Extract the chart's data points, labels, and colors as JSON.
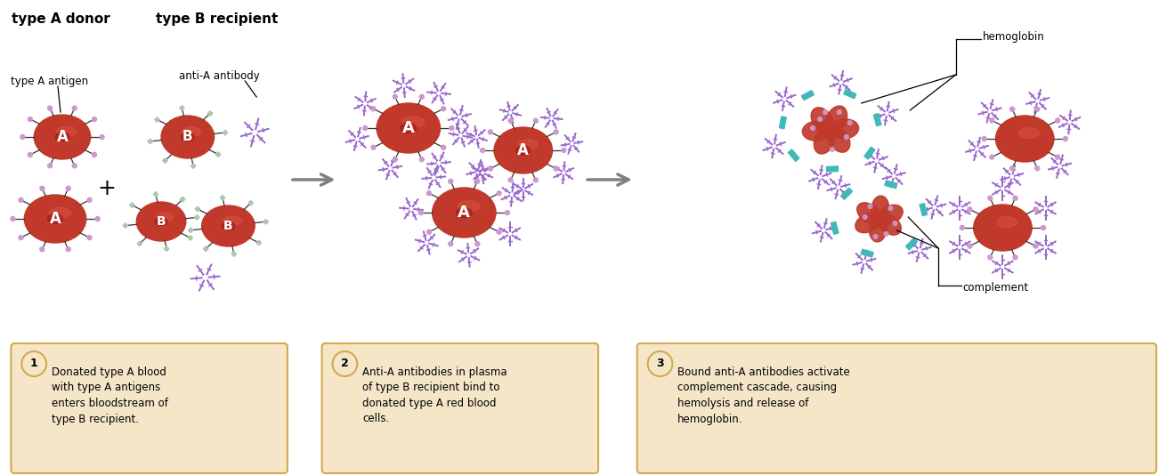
{
  "bg_color": "#ffffff",
  "rbc_color": "#c0392b",
  "antigen_a_color": "#cc99cc",
  "antigen_b_color": "#aac8aa",
  "antibody_color": "#9966cc",
  "complement_color": "#40b8b8",
  "text_color": "#000000",
  "label_box_color": "#f5e6c8",
  "label_border_color": "#d4a850",
  "step_circle_color": "#d4a850",
  "arrow_color": "#808080",
  "title1": "type A donor",
  "title2": "type B recipient",
  "label_antigen": "type A antigen",
  "label_antibody": "anti-A antibody",
  "label_hemoglobin": "hemoglobin",
  "label_complement": "complement",
  "step1_text": "Donated type A blood\nwith type A antigens\nenters bloodstream of\ntype B recipient.",
  "step2_text": "Anti-A antibodies in plasma\nof type B recipient bind to\ndonated type A red blood\ncells.",
  "step3_text": "Bound anti-A antibodies activate\ncomplement cascade, causing\nhemolysis and release of\nhemoglobin."
}
